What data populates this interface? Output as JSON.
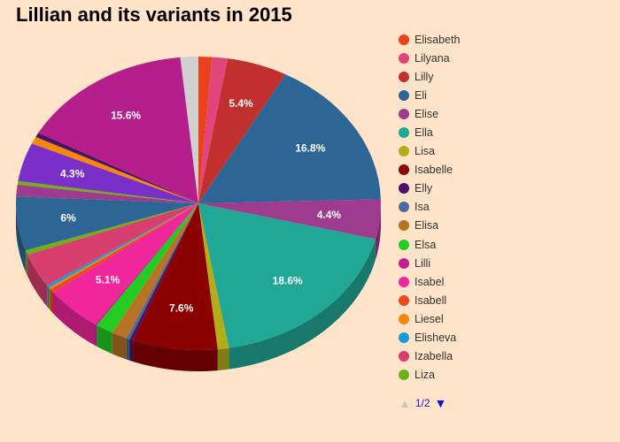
{
  "chart_data": {
    "type": "pie",
    "title": "Lillian and its variants in 2015",
    "labels": [
      "Elisabeth",
      "Lilyana",
      "Lilly",
      "Eli",
      "Elise",
      "Ella",
      "Lisa",
      "Isabelle",
      "Elly",
      "Isa",
      "Elisa",
      "Elsa",
      "Lilli",
      "Isabel",
      "Isabell",
      "Liesel",
      "Elisheva",
      "Izabella",
      "Liza"
    ],
    "slices": [
      {
        "name": "Elisabeth",
        "value": 1.2,
        "color": "#e8421c"
      },
      {
        "name": "Lilyana",
        "value": 1.4,
        "color": "#e0457b"
      },
      {
        "name": "Lilly",
        "value": 5.4,
        "color": "#c0302e",
        "label": "5.4%"
      },
      {
        "name": "Eli",
        "value": 16.8,
        "color": "#2d6595",
        "label": "16.8%"
      },
      {
        "name": "Elise",
        "value": 4.4,
        "color": "#9d3b8e",
        "label": "4.4%"
      },
      {
        "name": "Ella",
        "value": 18.6,
        "color": "#21a795",
        "label": "18.6%"
      },
      {
        "name": "Lisa",
        "value": 1.0,
        "color": "#b2ad19"
      },
      {
        "name": "Isabelle",
        "value": 7.6,
        "color": "#8b0000",
        "label": "7.6%"
      },
      {
        "name": "Elly",
        "value": 0.3,
        "color": "#4b1166"
      },
      {
        "name": "Isa",
        "value": 0.3,
        "color": "#4a6ba0"
      },
      {
        "name": "Elisa",
        "value": 1.4,
        "color": "#b87325"
      },
      {
        "name": "Elsa",
        "value": 1.6,
        "color": "#22cc22"
      },
      {
        "name": "Lilli",
        "value": 0.2,
        "color": "#c41e95"
      },
      {
        "name": "Isabel",
        "value": 5.1,
        "color": "#f0269b",
        "label": "5.1%"
      },
      {
        "name": "Isabell",
        "value": 0.4,
        "color": "#e84a1e"
      },
      {
        "name": "Liesel",
        "value": 0.2,
        "color": "#f5880c"
      },
      {
        "name": "Elisheva",
        "value": 0.3,
        "color": "#1a9ad8"
      },
      {
        "name": "Izabella",
        "value": 3.8,
        "color": "#d7406e"
      },
      {
        "name": "Liza",
        "value": 0.5,
        "color": "#6fb018"
      },
      {
        "name": "",
        "value": 6.0,
        "color": "#2d6595",
        "label": "6%"
      },
      {
        "name": "",
        "value": 1.3,
        "color": "#9d3b8e"
      },
      {
        "name": "",
        "value": 0.4,
        "color": "#6fb018"
      },
      {
        "name": "",
        "value": 4.3,
        "color": "#7a2fc8",
        "label": "4.3%"
      },
      {
        "name": "",
        "value": 0.8,
        "color": "#f5880c"
      },
      {
        "name": "",
        "value": 0.5,
        "color": "#4b1166"
      },
      {
        "name": "",
        "value": 15.6,
        "color": "#b51f8c",
        "label": "15.6%"
      },
      {
        "name": "",
        "value": 1.6,
        "color": "#d0d0d0"
      }
    ],
    "legend_placement": "right",
    "legend_page": "1/2"
  }
}
